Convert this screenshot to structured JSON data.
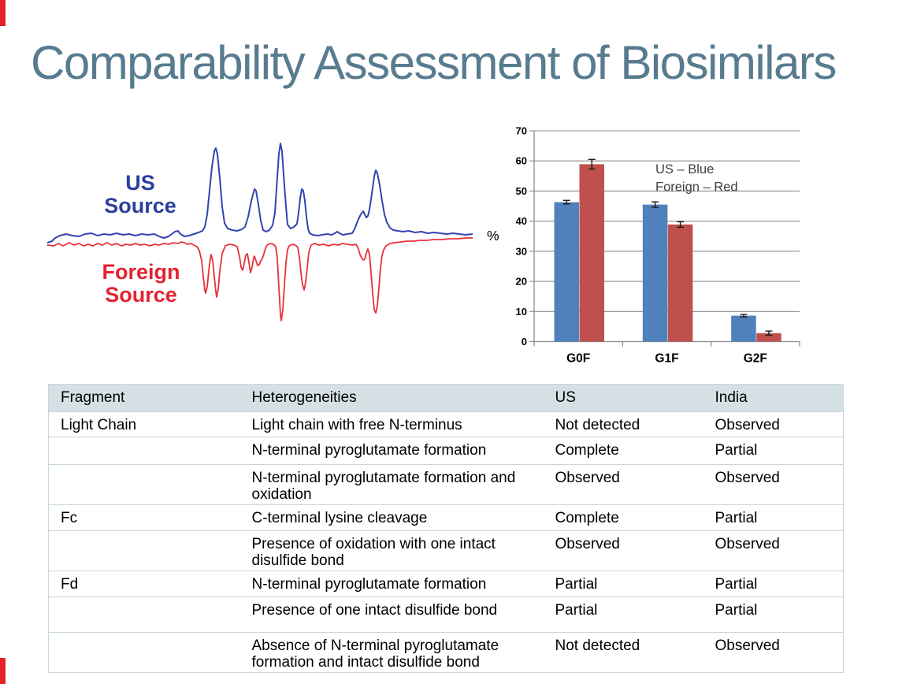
{
  "slide": {
    "title": "Comparability Assessment of Biosimilars"
  },
  "colors": {
    "title_blue": "#587b8f",
    "accent_red": "#e6212b",
    "us_trace_blue": "#3344af",
    "foreign_trace_red": "#e8303a",
    "us_label_blue": "#2b3f9b",
    "foreign_label_red": "#e32230",
    "bar_blue": "#4f81bd",
    "bar_red": "#c0504d",
    "table_header_bg": "#d5e0e5",
    "table_border": "#c8d6dc"
  },
  "chromatogram": {
    "us_label_line1": "US",
    "us_label_line2": "Source",
    "foreign_label_line1": "Foreign",
    "foreign_label_line2": "Source"
  },
  "chart_data": {
    "type": "bar",
    "title": "",
    "xlabel": "",
    "ylabel": "%",
    "categories": [
      "G0F",
      "G1F",
      "G2F"
    ],
    "series": [
      {
        "name": "US",
        "color": "#4f81bd",
        "values": [
          46.3,
          45.5,
          8.6
        ],
        "errors": [
          0.6,
          0.9,
          0.4
        ]
      },
      {
        "name": "Foreign",
        "color": "#c0504d",
        "values": [
          58.9,
          38.9,
          2.8
        ],
        "errors": [
          1.6,
          0.9,
          0.7
        ]
      }
    ],
    "ylim": [
      0,
      70
    ],
    "yticks": [
      0,
      10,
      20,
      30,
      40,
      50,
      60,
      70
    ],
    "grid": true,
    "legend_lines": [
      "US – Blue",
      "Foreign – Red"
    ],
    "legend_position": "inside-top-right"
  },
  "table": {
    "headers": [
      "Fragment",
      "Heterogeneities",
      "US",
      "India"
    ],
    "rows": [
      {
        "fragment": "Light Chain",
        "heterogeneity": "Light chain with free N-terminus",
        "us": "Not detected",
        "india": "Observed"
      },
      {
        "fragment": "",
        "heterogeneity": "N-terminal pyroglutamate formation",
        "us": "Complete",
        "india": "Partial"
      },
      {
        "fragment": "",
        "heterogeneity": "N-terminal pyroglutamate formation and oxidation",
        "us": "Observed",
        "india": "Observed"
      },
      {
        "fragment": "Fc",
        "heterogeneity": "C-terminal lysine cleavage",
        "us": "Complete",
        "india": "Partial"
      },
      {
        "fragment": "",
        "heterogeneity": "Presence of oxidation with one intact disulfide bond",
        "us": "Observed",
        "india": "Observed"
      },
      {
        "fragment": "Fd",
        "heterogeneity": "N-terminal pyroglutamate formation",
        "us": "Partial",
        "india": "Partial"
      },
      {
        "fragment": "",
        "heterogeneity": "Presence of one intact disulfide bond",
        "us": "Partial",
        "india": "Partial"
      },
      {
        "fragment": "",
        "heterogeneity": "Absence of N-terminal pyroglutamate formation and intact disulfide bond",
        "us": "Not detected",
        "india": "Observed"
      }
    ]
  }
}
